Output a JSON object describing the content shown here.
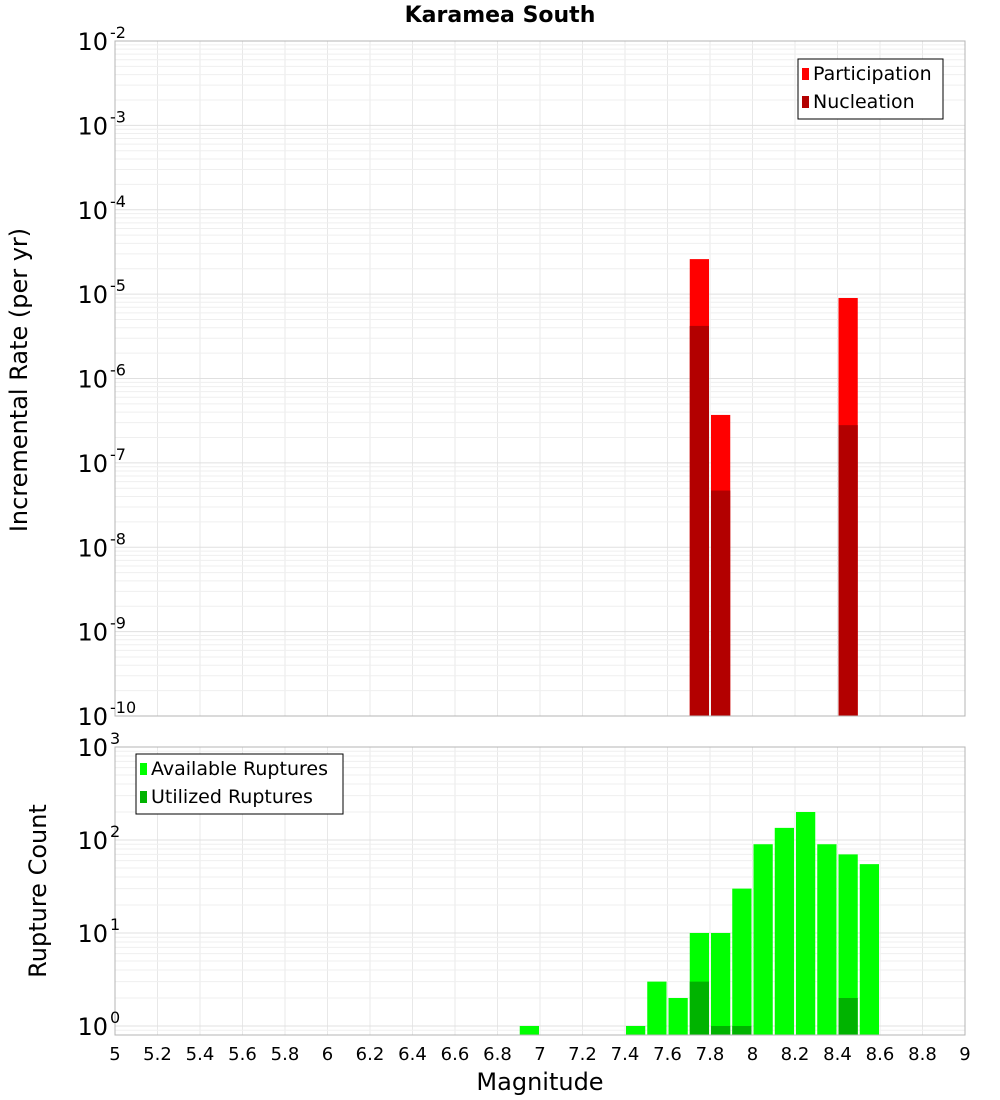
{
  "chart_data": [
    {
      "id": "rate",
      "type": "bar",
      "title": "Karamea South",
      "xlabel": "",
      "ylabel": "Incremental Rate (per yr)",
      "xlim": [
        5,
        9
      ],
      "ylim": [
        1e-10,
        0.01
      ],
      "y_scale": "log",
      "y_ticks": [
        {
          "base": "10",
          "exp": "-10",
          "value": 1e-10
        },
        {
          "base": "10",
          "exp": "-9",
          "value": 1e-09
        },
        {
          "base": "10",
          "exp": "-8",
          "value": 1e-08
        },
        {
          "base": "10",
          "exp": "-7",
          "value": 1e-07
        },
        {
          "base": "10",
          "exp": "-6",
          "value": 1e-06
        },
        {
          "base": "10",
          "exp": "-5",
          "value": 1e-05
        },
        {
          "base": "10",
          "exp": "-4",
          "value": 0.0001
        },
        {
          "base": "10",
          "exp": "-3",
          "value": 0.001
        },
        {
          "base": "10",
          "exp": "-2",
          "value": 0.01
        }
      ],
      "bar_width": 0.1,
      "grid": true,
      "legend_position": "top-right",
      "series": [
        {
          "name": "Participation",
          "color": "#ff0000",
          "x": [
            7.75,
            7.85,
            8.45
          ],
          "values": [
            2.6e-05,
            3.7e-07,
            9e-06
          ]
        },
        {
          "name": "Nucleation",
          "color": "#b30000",
          "x": [
            7.75,
            7.85,
            8.45
          ],
          "values": [
            4.2e-06,
            4.7e-08,
            2.8e-07
          ]
        }
      ]
    },
    {
      "id": "count",
      "type": "bar",
      "title": "",
      "xlabel": "Magnitude",
      "ylabel": "Rupture Count",
      "xlim": [
        5,
        9
      ],
      "ylim": [
        0.8,
        1000
      ],
      "y_scale": "log",
      "y_ticks": [
        {
          "base": "10",
          "exp": "0",
          "value": 1
        },
        {
          "base": "10",
          "exp": "1",
          "value": 10
        },
        {
          "base": "10",
          "exp": "2",
          "value": 100
        },
        {
          "base": "10",
          "exp": "3",
          "value": 1000
        }
      ],
      "x_ticks": [
        "5",
        "5.2",
        "5.4",
        "5.6",
        "5.8",
        "6",
        "6.2",
        "6.4",
        "6.6",
        "6.8",
        "7",
        "7.2",
        "7.4",
        "7.6",
        "7.8",
        "8",
        "8.2",
        "8.4",
        "8.6",
        "8.8",
        "9"
      ],
      "bar_width": 0.1,
      "grid": true,
      "legend_position": "top-left",
      "series": [
        {
          "name": "Available Ruptures",
          "color": "#00ff00",
          "x": [
            6.95,
            7.45,
            7.55,
            7.65,
            7.75,
            7.85,
            7.95,
            8.05,
            8.15,
            8.25,
            8.35,
            8.45,
            8.55
          ],
          "values": [
            1,
            1,
            3,
            2,
            10,
            10,
            30,
            90,
            135,
            200,
            90,
            70,
            55
          ]
        },
        {
          "name": "Utilized Ruptures",
          "color": "#00b300",
          "x": [
            7.75,
            7.85,
            7.95,
            8.45
          ],
          "values": [
            3,
            1,
            1,
            2
          ]
        }
      ]
    }
  ]
}
